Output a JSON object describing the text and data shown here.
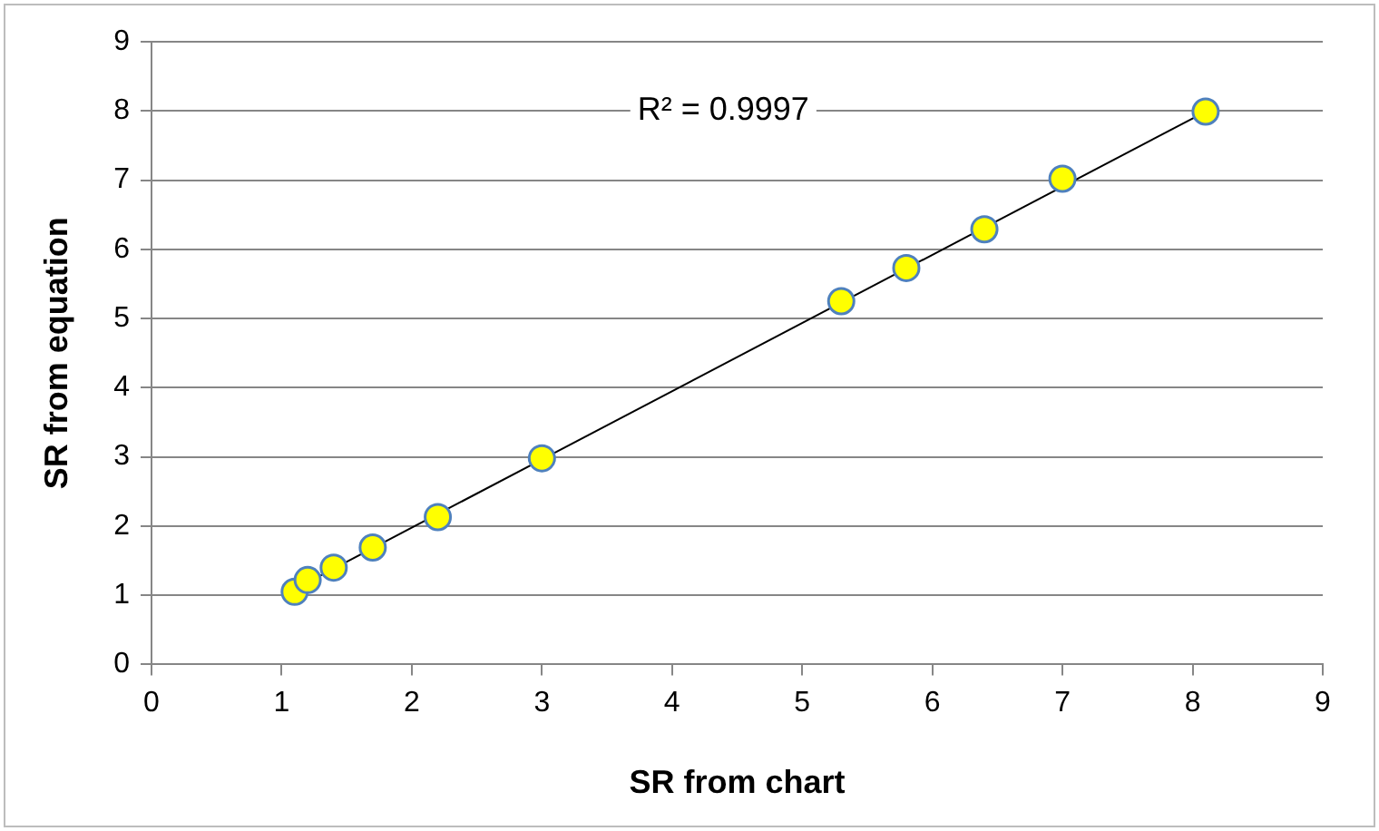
{
  "chart_data": {
    "type": "scatter",
    "xlabel": "SR from chart",
    "ylabel": "SR from equation",
    "annotations": [
      "R² = 0.9997"
    ],
    "xlim": [
      0,
      9
    ],
    "xticks": [
      0,
      1,
      2,
      3,
      4,
      5,
      6,
      7,
      8,
      9
    ],
    "ylim": [
      0,
      9
    ],
    "yticks": [
      0,
      1,
      2,
      3,
      4,
      5,
      6,
      7,
      8,
      9
    ],
    "grid": "y",
    "legend": false,
    "series": [
      {
        "color": "#ffff00",
        "marker": "circle",
        "x": [
          1.1,
          1.2,
          1.4,
          1.7,
          2.2,
          3.0,
          5.3,
          5.8,
          6.4,
          7.0,
          8.1
        ],
        "values": [
          1.05,
          1.22,
          1.4,
          1.69,
          2.13,
          2.98,
          5.25,
          5.73,
          6.29,
          7.02,
          7.99
        ]
      },
      {
        "type": "line",
        "color": "#000000",
        "marker": "none",
        "x": [
          1.1,
          8.1
        ],
        "values": [
          1.09,
          7.99
        ]
      }
    ]
  }
}
